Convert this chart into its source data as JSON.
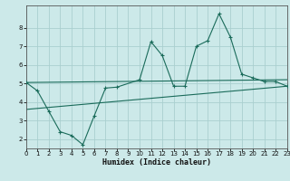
{
  "title": "",
  "xlabel": "Humidex (Indice chaleur)",
  "bg_color": "#cce9e9",
  "grid_color": "#aacfcf",
  "line_color": "#1a6b5a",
  "axis_color": "#555555",
  "x_min": 0,
  "x_max": 23,
  "y_min": 1.5,
  "y_max": 9.2,
  "yticks": [
    2,
    3,
    4,
    5,
    6,
    7,
    8
  ],
  "xticks": [
    0,
    1,
    2,
    3,
    4,
    5,
    6,
    7,
    8,
    9,
    10,
    11,
    12,
    13,
    14,
    15,
    16,
    17,
    18,
    19,
    20,
    21,
    22,
    23
  ],
  "main_curve_x": [
    0,
    1,
    2,
    3,
    4,
    5,
    6,
    7,
    8,
    10,
    11,
    12,
    13,
    14,
    15,
    16,
    17,
    18,
    19,
    20,
    21,
    22,
    23
  ],
  "main_curve_y": [
    5.05,
    4.6,
    3.5,
    2.4,
    2.2,
    1.7,
    3.25,
    4.75,
    4.8,
    5.2,
    7.25,
    6.5,
    4.85,
    4.85,
    7.0,
    7.3,
    8.75,
    7.5,
    5.5,
    5.3,
    5.1,
    5.1,
    4.85
  ],
  "upper_line_x": [
    0,
    23
  ],
  "upper_line_y": [
    5.05,
    5.2
  ],
  "lower_line_x": [
    0,
    23
  ],
  "lower_line_y": [
    3.6,
    4.85
  ]
}
